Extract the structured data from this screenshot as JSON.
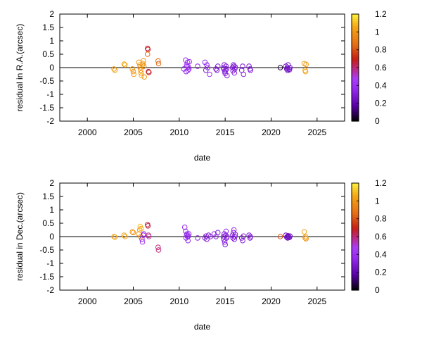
{
  "chart_data": [
    {
      "type": "scatter",
      "title": "",
      "xlabel": "date",
      "ylabel": "residual in R.A.(arcsec)",
      "xlim": [
        1997,
        2028
      ],
      "ylim": [
        -2,
        2
      ],
      "xticks": [
        "2000",
        "2005",
        "2010",
        "2015",
        "2020",
        "2025"
      ],
      "yticks": [
        "2",
        "1.5",
        "1",
        "0.5",
        "0",
        "-0.5",
        "-1",
        "-1.5",
        "-2"
      ],
      "colorbar": {
        "min": 0,
        "max": 1.2,
        "ticks": [
          "1.2",
          "1",
          "0.8",
          "0.6",
          "0.4",
          "0.2",
          "0"
        ]
      },
      "zero_line": true,
      "grid": false,
      "points": [
        [
          2002.9,
          -0.05,
          1.05
        ],
        [
          2003.0,
          -0.1,
          1.05
        ],
        [
          2004.0,
          0.13,
          1.05
        ],
        [
          2004.1,
          0.1,
          1.05
        ],
        [
          2004.9,
          -0.05,
          1.0
        ],
        [
          2005.0,
          -0.15,
          1.0
        ],
        [
          2005.05,
          -0.25,
          1.0
        ],
        [
          2005.6,
          0.2,
          1.0
        ],
        [
          2005.7,
          0.1,
          1.05
        ],
        [
          2005.75,
          0.0,
          1.0
        ],
        [
          2005.8,
          -0.1,
          1.0
        ],
        [
          2005.85,
          -0.2,
          1.0
        ],
        [
          2005.9,
          -0.3,
          1.1
        ],
        [
          2006.0,
          0.1,
          1.0
        ],
        [
          2006.05,
          0.15,
          1.05
        ],
        [
          2006.1,
          0.25,
          1.0
        ],
        [
          2006.15,
          0.05,
          0.95
        ],
        [
          2006.2,
          -0.35,
          1.0
        ],
        [
          2006.55,
          0.72,
          0.65
        ],
        [
          2006.6,
          0.68,
          0.7
        ],
        [
          2006.55,
          0.5,
          0.85
        ],
        [
          2006.65,
          -0.15,
          0.65
        ],
        [
          2006.7,
          -0.18,
          0.7
        ],
        [
          2007.7,
          0.25,
          0.85
        ],
        [
          2007.75,
          0.15,
          0.85
        ],
        [
          2010.5,
          -0.05,
          0.35
        ],
        [
          2010.7,
          0.28,
          0.4
        ],
        [
          2010.75,
          -0.15,
          0.35
        ],
        [
          2010.8,
          0.1,
          0.4
        ],
        [
          2010.85,
          0.05,
          0.4
        ],
        [
          2010.9,
          0.2,
          0.4
        ],
        [
          2010.95,
          -0.1,
          0.4
        ],
        [
          2011.0,
          0.02,
          0.4
        ],
        [
          2011.05,
          -0.05,
          0.4
        ],
        [
          2011.1,
          0.22,
          0.4
        ],
        [
          2012.0,
          0.05,
          0.35
        ],
        [
          2012.8,
          0.2,
          0.35
        ],
        [
          2012.9,
          -0.1,
          0.3
        ],
        [
          2013.0,
          0.1,
          0.35
        ],
        [
          2013.1,
          0.0,
          0.35
        ],
        [
          2013.3,
          -0.25,
          0.4
        ],
        [
          2014.0,
          -0.05,
          0.3
        ],
        [
          2014.1,
          -0.1,
          0.3
        ],
        [
          2014.2,
          0.05,
          0.3
        ],
        [
          2014.8,
          0.0,
          0.3
        ],
        [
          2014.85,
          -0.05,
          0.3
        ],
        [
          2014.9,
          0.1,
          0.3
        ],
        [
          2014.95,
          -0.15,
          0.3
        ],
        [
          2015.0,
          -0.22,
          0.3
        ],
        [
          2015.05,
          -0.1,
          0.3
        ],
        [
          2015.1,
          0.05,
          0.3
        ],
        [
          2015.15,
          -0.05,
          0.3
        ],
        [
          2015.2,
          -0.3,
          0.3
        ],
        [
          2015.8,
          0.0,
          0.3
        ],
        [
          2015.85,
          -0.12,
          0.3
        ],
        [
          2015.9,
          0.1,
          0.3
        ],
        [
          2015.95,
          0.05,
          0.3
        ],
        [
          2016.0,
          -0.2,
          0.3
        ],
        [
          2016.05,
          -0.05,
          0.3
        ],
        [
          2016.1,
          0.02,
          0.3
        ],
        [
          2016.8,
          -0.1,
          0.3
        ],
        [
          2016.9,
          0.05,
          0.3
        ],
        [
          2017.0,
          -0.25,
          0.3
        ],
        [
          2017.6,
          0.05,
          0.3
        ],
        [
          2017.7,
          -0.05,
          0.3
        ],
        [
          2017.75,
          -0.1,
          0.3
        ],
        [
          2021.0,
          0.0,
          0.05
        ],
        [
          2021.6,
          0.05,
          0.25
        ],
        [
          2021.7,
          -0.05,
          0.25
        ],
        [
          2021.75,
          0.0,
          0.25
        ],
        [
          2021.8,
          -0.1,
          0.25
        ],
        [
          2021.85,
          0.1,
          0.25
        ],
        [
          2021.9,
          -0.05,
          0.25
        ],
        [
          2022.0,
          -0.08,
          0.25
        ],
        [
          2022.05,
          0.0,
          0.25
        ],
        [
          2023.6,
          0.15,
          1.05
        ],
        [
          2023.7,
          -0.1,
          1.05
        ],
        [
          2023.75,
          -0.15,
          1.05
        ],
        [
          2023.8,
          0.12,
          1.0
        ]
      ]
    },
    {
      "type": "scatter",
      "title": "",
      "xlabel": "date",
      "ylabel": "residual in Dec.(arcsec)",
      "xlim": [
        1997,
        2028
      ],
      "ylim": [
        -2,
        2
      ],
      "xticks": [
        "2000",
        "2005",
        "2010",
        "2015",
        "2020",
        "2025"
      ],
      "yticks": [
        "2",
        "1.5",
        "1",
        "0.5",
        "0",
        "-0.5",
        "-1",
        "-1.5",
        "-2"
      ],
      "colorbar": {
        "min": 0,
        "max": 1.2,
        "ticks": [
          "1.2",
          "1",
          "0.8",
          "0.6",
          "0.4",
          "0.2",
          "0"
        ]
      },
      "zero_line": true,
      "grid": false,
      "points": [
        [
          2002.9,
          0.0,
          1.05
        ],
        [
          2003.0,
          -0.02,
          1.05
        ],
        [
          2004.0,
          0.05,
          1.05
        ],
        [
          2004.1,
          0.0,
          1.05
        ],
        [
          2004.9,
          0.18,
          1.0
        ],
        [
          2005.0,
          0.15,
          1.0
        ],
        [
          2005.6,
          0.1,
          1.0
        ],
        [
          2005.7,
          0.25,
          1.05
        ],
        [
          2005.75,
          0.38,
          1.1
        ],
        [
          2005.8,
          0.0,
          1.0
        ],
        [
          2005.85,
          0.3,
          1.05
        ],
        [
          2005.95,
          -0.1,
          0.4
        ],
        [
          2006.0,
          -0.2,
          0.4
        ],
        [
          2006.1,
          0.05,
          0.4
        ],
        [
          2006.15,
          0.1,
          0.35
        ],
        [
          2006.55,
          0.45,
          0.65
        ],
        [
          2006.6,
          0.4,
          0.65
        ],
        [
          2006.65,
          0.05,
          0.6
        ],
        [
          2006.7,
          0.0,
          0.55
        ],
        [
          2007.7,
          -0.4,
          0.6
        ],
        [
          2007.75,
          -0.5,
          0.6
        ],
        [
          2010.6,
          0.35,
          0.35
        ],
        [
          2010.7,
          0.2,
          0.35
        ],
        [
          2010.75,
          -0.05,
          0.35
        ],
        [
          2010.8,
          0.05,
          0.35
        ],
        [
          2010.85,
          0.1,
          0.35
        ],
        [
          2010.9,
          0.0,
          0.35
        ],
        [
          2010.95,
          -0.15,
          0.35
        ],
        [
          2011.0,
          0.02,
          0.35
        ],
        [
          2011.05,
          0.1,
          0.35
        ],
        [
          2012.0,
          -0.05,
          0.35
        ],
        [
          2012.8,
          -0.05,
          0.3
        ],
        [
          2012.9,
          0.02,
          0.3
        ],
        [
          2013.0,
          -0.1,
          0.3
        ],
        [
          2013.2,
          0.05,
          0.3
        ],
        [
          2013.4,
          0.0,
          0.3
        ],
        [
          2013.8,
          0.1,
          0.35
        ],
        [
          2014.0,
          0.0,
          0.3
        ],
        [
          2014.2,
          0.15,
          0.3
        ],
        [
          2014.8,
          0.0,
          0.3
        ],
        [
          2014.85,
          -0.1,
          0.3
        ],
        [
          2014.9,
          0.1,
          0.3
        ],
        [
          2014.95,
          -0.2,
          0.3
        ],
        [
          2015.0,
          -0.3,
          0.3
        ],
        [
          2015.05,
          0.05,
          0.3
        ],
        [
          2015.1,
          0.2,
          0.35
        ],
        [
          2015.15,
          -0.05,
          0.3
        ],
        [
          2015.2,
          0.0,
          0.3
        ],
        [
          2015.8,
          0.05,
          0.3
        ],
        [
          2015.85,
          -0.05,
          0.3
        ],
        [
          2015.9,
          0.15,
          0.35
        ],
        [
          2015.95,
          0.25,
          0.35
        ],
        [
          2016.0,
          -0.1,
          0.3
        ],
        [
          2016.05,
          0.0,
          0.3
        ],
        [
          2016.1,
          0.08,
          0.3
        ],
        [
          2016.8,
          -0.05,
          0.3
        ],
        [
          2016.9,
          -0.15,
          0.3
        ],
        [
          2017.0,
          0.02,
          0.3
        ],
        [
          2017.6,
          0.05,
          0.3
        ],
        [
          2017.7,
          -0.05,
          0.3
        ],
        [
          2017.75,
          0.0,
          0.3
        ],
        [
          2021.0,
          0.0,
          0.8
        ],
        [
          2021.6,
          0.05,
          0.25
        ],
        [
          2021.7,
          -0.02,
          0.25
        ],
        [
          2021.75,
          0.0,
          0.25
        ],
        [
          2021.8,
          -0.05,
          0.25
        ],
        [
          2021.85,
          0.03,
          0.25
        ],
        [
          2021.9,
          0.0,
          0.25
        ],
        [
          2022.0,
          -0.03,
          0.25
        ],
        [
          2022.05,
          0.02,
          0.25
        ],
        [
          2023.6,
          0.18,
          1.05
        ],
        [
          2023.7,
          -0.05,
          1.05
        ],
        [
          2023.75,
          0.0,
          1.05
        ],
        [
          2023.8,
          -0.08,
          1.0
        ]
      ]
    }
  ]
}
